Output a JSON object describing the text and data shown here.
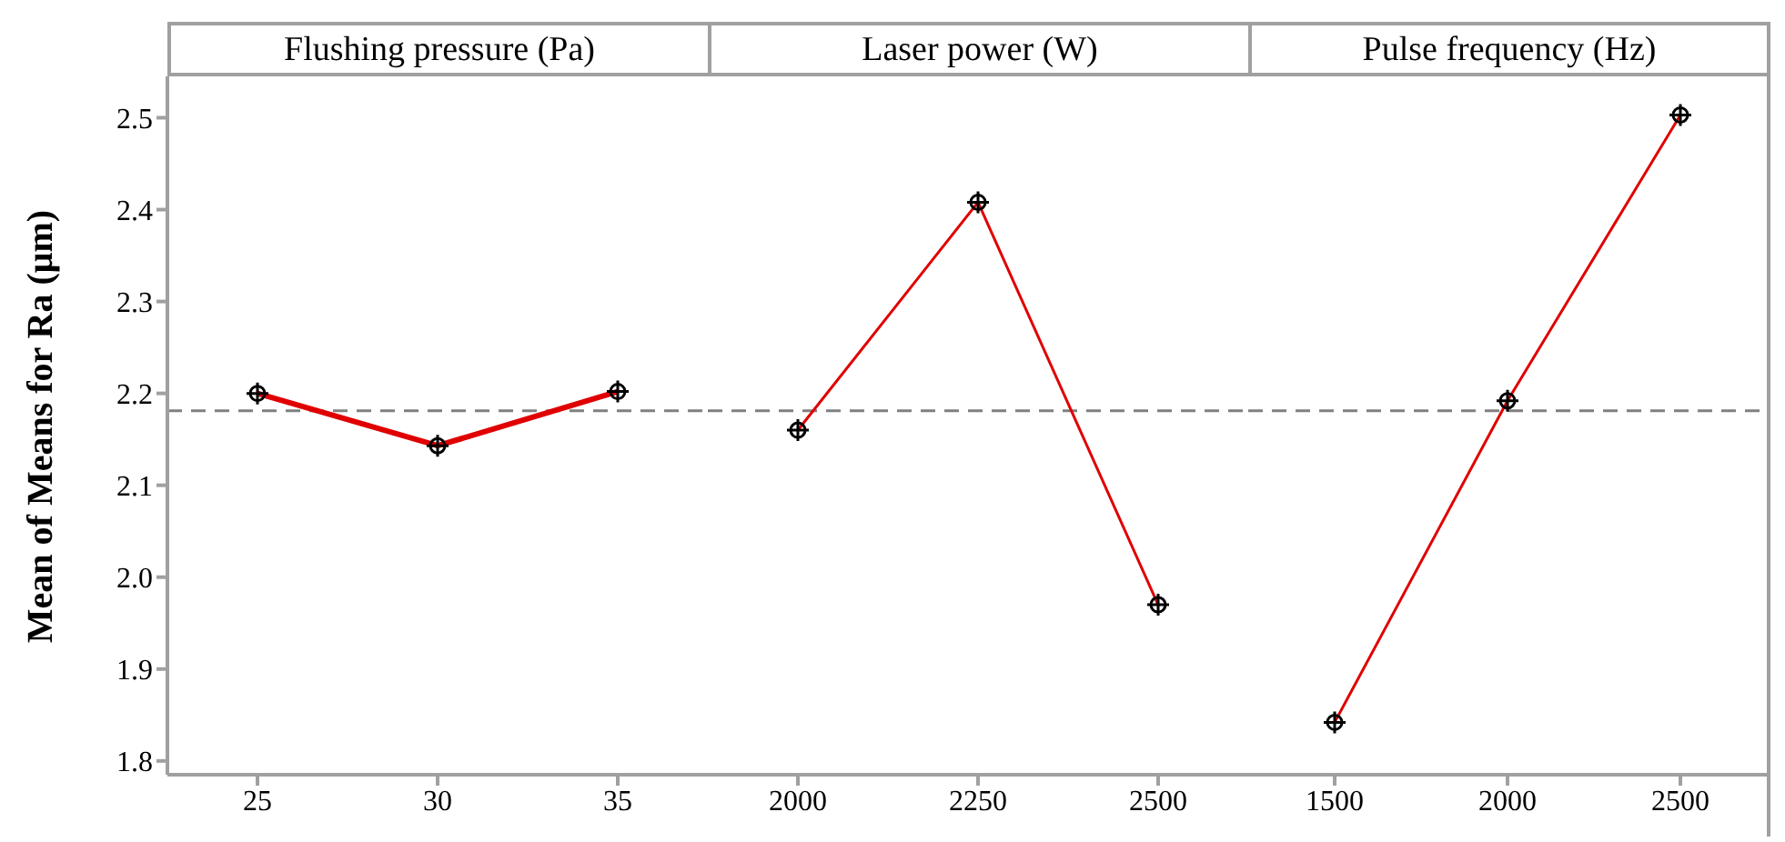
{
  "chart_data": [
    {
      "type": "line",
      "title": "Flushing pressure (Pa)",
      "ylabel": "Mean of Means for Ra (μm)",
      "categories": [
        "25",
        "30",
        "35"
      ],
      "series": [
        {
          "color": "#e00000",
          "values": [
            2.2,
            2.143,
            2.202
          ]
        }
      ],
      "ylim": [
        1.785,
        2.545
      ],
      "yticks": [
        1.8,
        1.9,
        {
          "value": 2,
          "label": "2.0"
        },
        2.1,
        2.2,
        2.3,
        2.4,
        2.5
      ],
      "marker": "circle",
      "ref_lines": [
        {
          "axis": "y",
          "value": 2.181,
          "color": "#808080",
          "line_style": "dashed"
        }
      ]
    },
    {
      "type": "line",
      "title": "Laser power (W)",
      "categories": [
        "2000",
        "2250",
        "2500"
      ],
      "series": [
        {
          "color": "#e00000",
          "values": [
            2.16,
            2.408,
            1.97
          ]
        }
      ],
      "ylim": [
        1.785,
        2.545
      ],
      "tick_labels": "x",
      "marker": "circle",
      "ref_lines": [
        {
          "axis": "y",
          "value": 2.181,
          "color": "#808080",
          "line_style": "dashed"
        }
      ]
    },
    {
      "type": "line",
      "title": "Pulse frequency (Hz)",
      "categories": [
        "1500",
        "2000",
        "2500"
      ],
      "series": [
        {
          "color": "#e00000",
          "values": [
            1.842,
            2.192,
            2.503
          ]
        }
      ],
      "ylim": [
        1.785,
        2.545
      ],
      "tick_labels": "x",
      "marker": "circle",
      "ref_lines": [
        {
          "axis": "y",
          "value": 2.181,
          "color": "#808080",
          "line_style": "dashed"
        }
      ]
    }
  ]
}
